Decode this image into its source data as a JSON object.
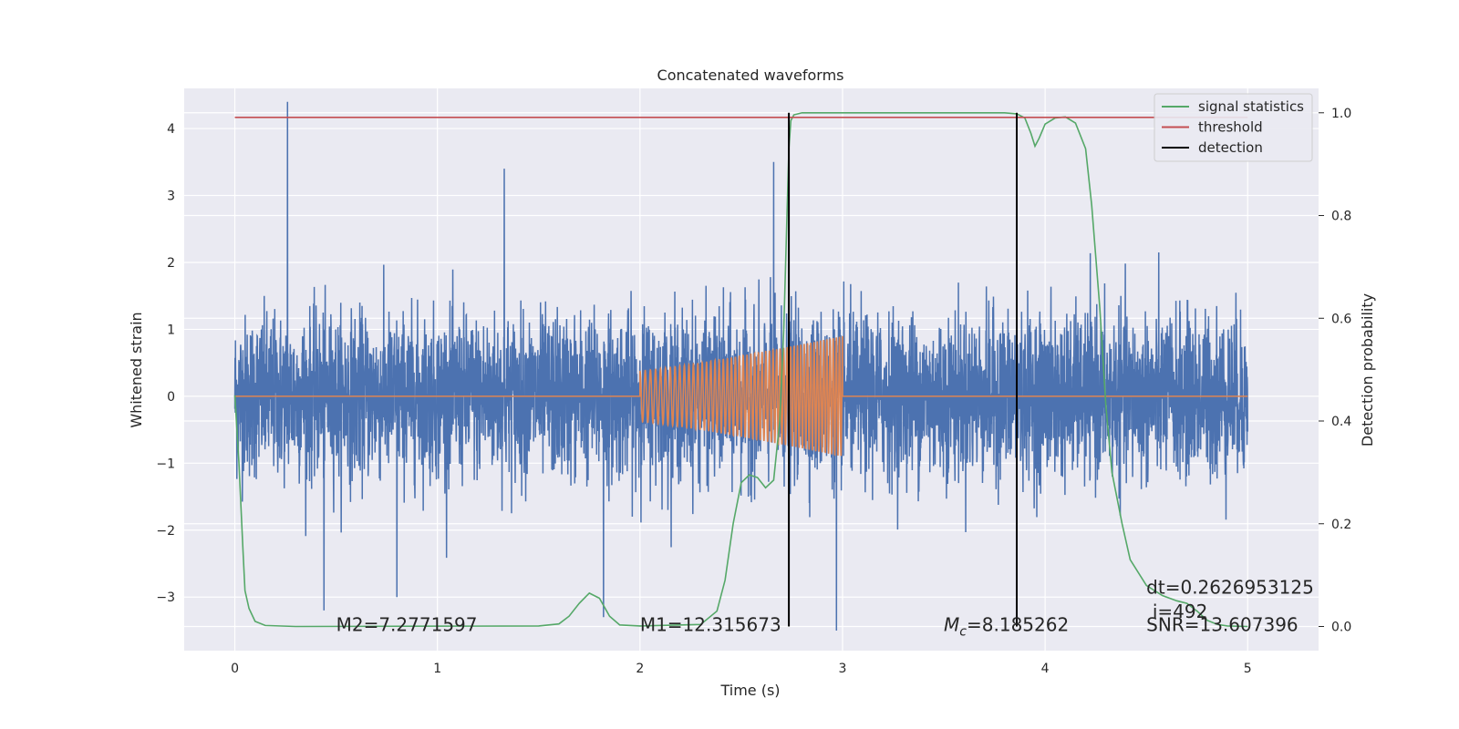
{
  "chart_data": {
    "type": "line",
    "title": "Concatenated waveforms",
    "xlabel": "Time (s)",
    "ylabel": "Whitened strain",
    "y2label": "Detection probability",
    "xlim": [
      -0.25,
      5.35
    ],
    "ylim": [
      -3.8,
      4.6
    ],
    "y2lim": [
      -0.047,
      1.0475
    ],
    "xticks": [
      0,
      1,
      2,
      3,
      4,
      5
    ],
    "yticks": [
      -3,
      -2,
      -1,
      0,
      1,
      2,
      3,
      4
    ],
    "y2ticks": [
      0.0,
      0.2,
      0.4,
      0.6,
      0.8,
      1.0
    ],
    "grid": true,
    "legend_position": "top-right",
    "series": [
      {
        "name": "",
        "axis": "left",
        "color": "#4c72b0",
        "kind": "noise",
        "x_range": [
          0,
          5
        ],
        "spread": 0.6,
        "peaks": [
          [
            0.26,
            4.4
          ],
          [
            1.33,
            3.4
          ],
          [
            2.66,
            3.5
          ],
          [
            0.8,
            -3.0
          ],
          [
            1.82,
            -3.3
          ],
          [
            2.97,
            -3.5
          ],
          [
            3.86,
            -3.4
          ],
          [
            0.44,
            -3.2
          ]
        ]
      },
      {
        "name": "",
        "axis": "left",
        "color": "#dd8452",
        "kind": "chirp",
        "t_start": 2.0,
        "t_end": 3.0,
        "amp_start": 0.38,
        "amp_end": 0.9,
        "flat_value": 0
      },
      {
        "name": "signal statistics",
        "axis": "right",
        "color": "#55a868",
        "points": [
          [
            0,
            0.45
          ],
          [
            0.02,
            0.32
          ],
          [
            0.04,
            0.15
          ],
          [
            0.05,
            0.07
          ],
          [
            0.07,
            0.035
          ],
          [
            0.1,
            0.01
          ],
          [
            0.15,
            0.002
          ],
          [
            0.3,
            0.0
          ],
          [
            1.5,
            0.001
          ],
          [
            1.6,
            0.005
          ],
          [
            1.65,
            0.02
          ],
          [
            1.7,
            0.045
          ],
          [
            1.75,
            0.065
          ],
          [
            1.8,
            0.055
          ],
          [
            1.85,
            0.02
          ],
          [
            1.9,
            0.003
          ],
          [
            2.0,
            0.001
          ],
          [
            2.3,
            0.004
          ],
          [
            2.38,
            0.03
          ],
          [
            2.42,
            0.09
          ],
          [
            2.46,
            0.2
          ],
          [
            2.5,
            0.28
          ],
          [
            2.54,
            0.295
          ],
          [
            2.58,
            0.29
          ],
          [
            2.62,
            0.27
          ],
          [
            2.66,
            0.285
          ],
          [
            2.69,
            0.4
          ],
          [
            2.71,
            0.58
          ],
          [
            2.72,
            0.72
          ],
          [
            2.735,
            0.93
          ],
          [
            2.745,
            0.985
          ],
          [
            2.76,
            0.996
          ],
          [
            2.8,
            1.0
          ],
          [
            3.8,
            1.0
          ],
          [
            3.86,
            0.998
          ],
          [
            3.9,
            0.99
          ],
          [
            3.93,
            0.96
          ],
          [
            3.95,
            0.935
          ],
          [
            3.97,
            0.95
          ],
          [
            4.0,
            0.978
          ],
          [
            4.05,
            0.99
          ],
          [
            4.1,
            0.992
          ],
          [
            4.15,
            0.98
          ],
          [
            4.2,
            0.93
          ],
          [
            4.23,
            0.82
          ],
          [
            4.27,
            0.62
          ],
          [
            4.3,
            0.43
          ],
          [
            4.33,
            0.3
          ],
          [
            4.38,
            0.2
          ],
          [
            4.42,
            0.13
          ],
          [
            4.5,
            0.08
          ],
          [
            4.58,
            0.06
          ],
          [
            4.65,
            0.05
          ],
          [
            4.7,
            0.045
          ],
          [
            4.75,
            0.03
          ],
          [
            4.8,
            0.012
          ],
          [
            4.85,
            0.004
          ],
          [
            4.9,
            0.001
          ],
          [
            5.0,
            0.0
          ]
        ]
      },
      {
        "name": "threshold",
        "axis": "right",
        "color": "#c44e52",
        "points": [
          [
            0,
            0.991
          ],
          [
            5,
            0.991
          ]
        ]
      },
      {
        "name": "detection",
        "axis": "right",
        "color": "#000000",
        "kind": "vlines",
        "x": [
          2.735,
          3.86
        ],
        "ymin": 0.0,
        "ymax": 1.0
      }
    ],
    "annotations": [
      {
        "text": "M2=7.2771597",
        "x": 0.5,
        "y": -3.4
      },
      {
        "text": "M1=12.315673",
        "x": 2.0,
        "y": -3.4
      },
      {
        "text": "=8.185262",
        "prefix": "M",
        "sub": "c",
        "x": 3.5,
        "y": -3.4
      },
      {
        "text": "SNR=13.607396",
        "x": 4.5,
        "y": -3.4
      },
      {
        "text": "i=492",
        "x": 4.53,
        "y": -3.2
      },
      {
        "text": "dt=0.2626953125",
        "x": 4.5,
        "y": -2.84
      }
    ]
  }
}
